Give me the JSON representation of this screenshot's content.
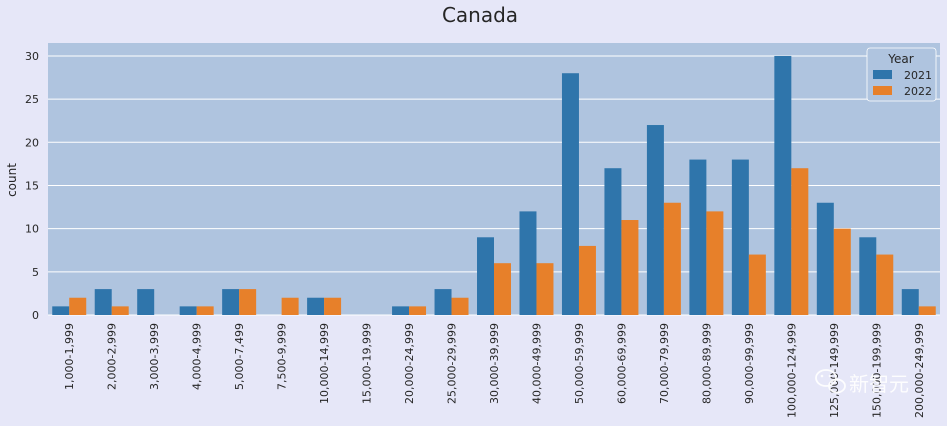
{
  "chart_data": {
    "type": "bar",
    "title": "Canada",
    "xlabel": "",
    "ylabel": "count",
    "ylim": [
      0,
      31.5
    ],
    "yticks": [
      0,
      5,
      10,
      15,
      20,
      25,
      30
    ],
    "grid": true,
    "legend": {
      "title": "Year",
      "placement": "top-right"
    },
    "categories": [
      "1,000-1,999",
      "2,000-2,999",
      "3,000-3,999",
      "4,000-4,999",
      "5,000-7,499",
      "7,500-9,999",
      "10,000-14,999",
      "15,000-19,999",
      "20,000-24,999",
      "25,000-29,999",
      "30,000-39,999",
      "40,000-49,999",
      "50,000-59,999",
      "60,000-69,999",
      "70,000-79,999",
      "80,000-89,999",
      "90,000-99,999",
      "100,000-124,999",
      "125,000-149,999",
      "150,000-199,999",
      "200,000-249,999"
    ],
    "series": [
      {
        "name": "2021",
        "color": "#2f75ab",
        "values": [
          1,
          3,
          3,
          1,
          3,
          0,
          2,
          0,
          1,
          3,
          9,
          12,
          28,
          17,
          22,
          18,
          18,
          30,
          13,
          9,
          3
        ]
      },
      {
        "name": "2022",
        "color": "#e7802a",
        "values": [
          2,
          1,
          0,
          1,
          3,
          2,
          2,
          0,
          1,
          2,
          6,
          6,
          8,
          11,
          13,
          12,
          7,
          17,
          10,
          7,
          1
        ]
      }
    ]
  },
  "watermark": {
    "text": "新智元",
    "icon": "wechat-icon"
  },
  "colors": {
    "page_bg": "#e6e7f8",
    "plot_bg": "#afc4df",
    "grid": "#ffffff"
  }
}
